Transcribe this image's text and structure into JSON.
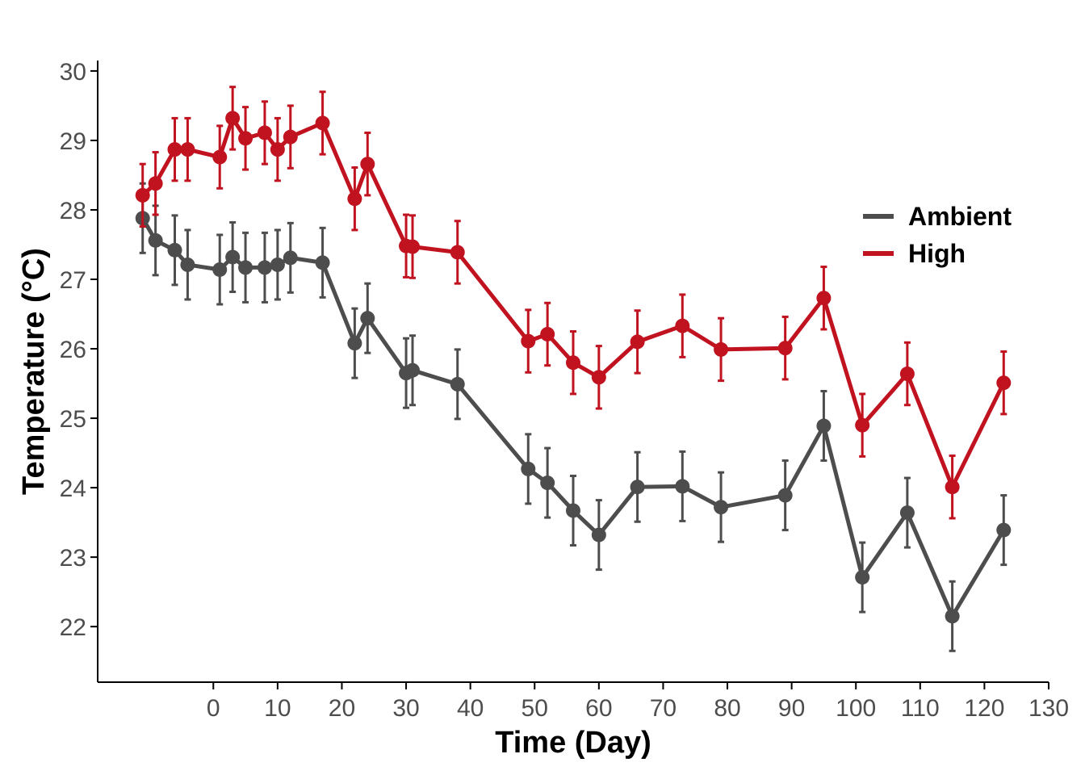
{
  "chart_data": {
    "type": "line",
    "title": "",
    "xlabel": "Time (Day)",
    "ylabel": "Temperature (°C)",
    "xlim": [
      -18,
      130
    ],
    "ylim": [
      21.2,
      30.15
    ],
    "x_ticks": [
      0,
      10,
      20,
      30,
      40,
      50,
      60,
      70,
      80,
      90,
      100,
      110,
      120,
      130
    ],
    "y_ticks": [
      22,
      23,
      24,
      25,
      26,
      27,
      28,
      29,
      30
    ],
    "grid": false,
    "legend_position": "right",
    "error_bars": true,
    "series": [
      {
        "name": "Ambient",
        "color": "#4d4d4d",
        "x": [
          -11,
          -9,
          -6,
          -4,
          1,
          3,
          5,
          8,
          10,
          12,
          17,
          22,
          24,
          30,
          31,
          38,
          49,
          52,
          56,
          60,
          66,
          73,
          79,
          89,
          95,
          101,
          108,
          115,
          123
        ],
        "y": [
          27.88,
          27.56,
          27.42,
          27.21,
          27.14,
          27.32,
          27.17,
          27.17,
          27.21,
          27.31,
          27.24,
          26.08,
          26.44,
          25.65,
          25.69,
          25.49,
          24.27,
          24.07,
          23.67,
          23.32,
          24.01,
          24.02,
          23.72,
          23.89,
          24.89,
          22.71,
          23.64,
          22.15,
          23.39
        ],
        "error": [
          0.5,
          0.5,
          0.5,
          0.5,
          0.5,
          0.5,
          0.5,
          0.5,
          0.5,
          0.5,
          0.5,
          0.5,
          0.5,
          0.5,
          0.5,
          0.5,
          0.5,
          0.5,
          0.5,
          0.5,
          0.5,
          0.5,
          0.5,
          0.5,
          0.5,
          0.5,
          0.5,
          0.5,
          0.5
        ]
      },
      {
        "name": "High",
        "color": "#c1121f",
        "x": [
          -11,
          -9,
          -6,
          -4,
          1,
          3,
          5,
          8,
          10,
          12,
          17,
          22,
          24,
          30,
          31,
          38,
          49,
          52,
          56,
          60,
          66,
          73,
          79,
          89,
          95,
          101,
          108,
          115,
          123
        ],
        "y": [
          28.21,
          28.38,
          28.87,
          28.87,
          28.76,
          29.32,
          29.03,
          29.11,
          28.87,
          29.05,
          29.25,
          28.16,
          28.66,
          27.48,
          27.47,
          27.39,
          26.11,
          26.21,
          25.8,
          25.59,
          26.1,
          26.33,
          25.99,
          26.01,
          26.73,
          24.9,
          25.64,
          24.01,
          25.51
        ]
      }
    ],
    "series_high_error": [
      0.45,
      0.45,
      0.45,
      0.45,
      0.45,
      0.45,
      0.45,
      0.45,
      0.45,
      0.45,
      0.45,
      0.45,
      0.45,
      0.45,
      0.45,
      0.45,
      0.45,
      0.45,
      0.45,
      0.45,
      0.45,
      0.45,
      0.45,
      0.45,
      0.45,
      0.45,
      0.45,
      0.45,
      0.45
    ]
  }
}
